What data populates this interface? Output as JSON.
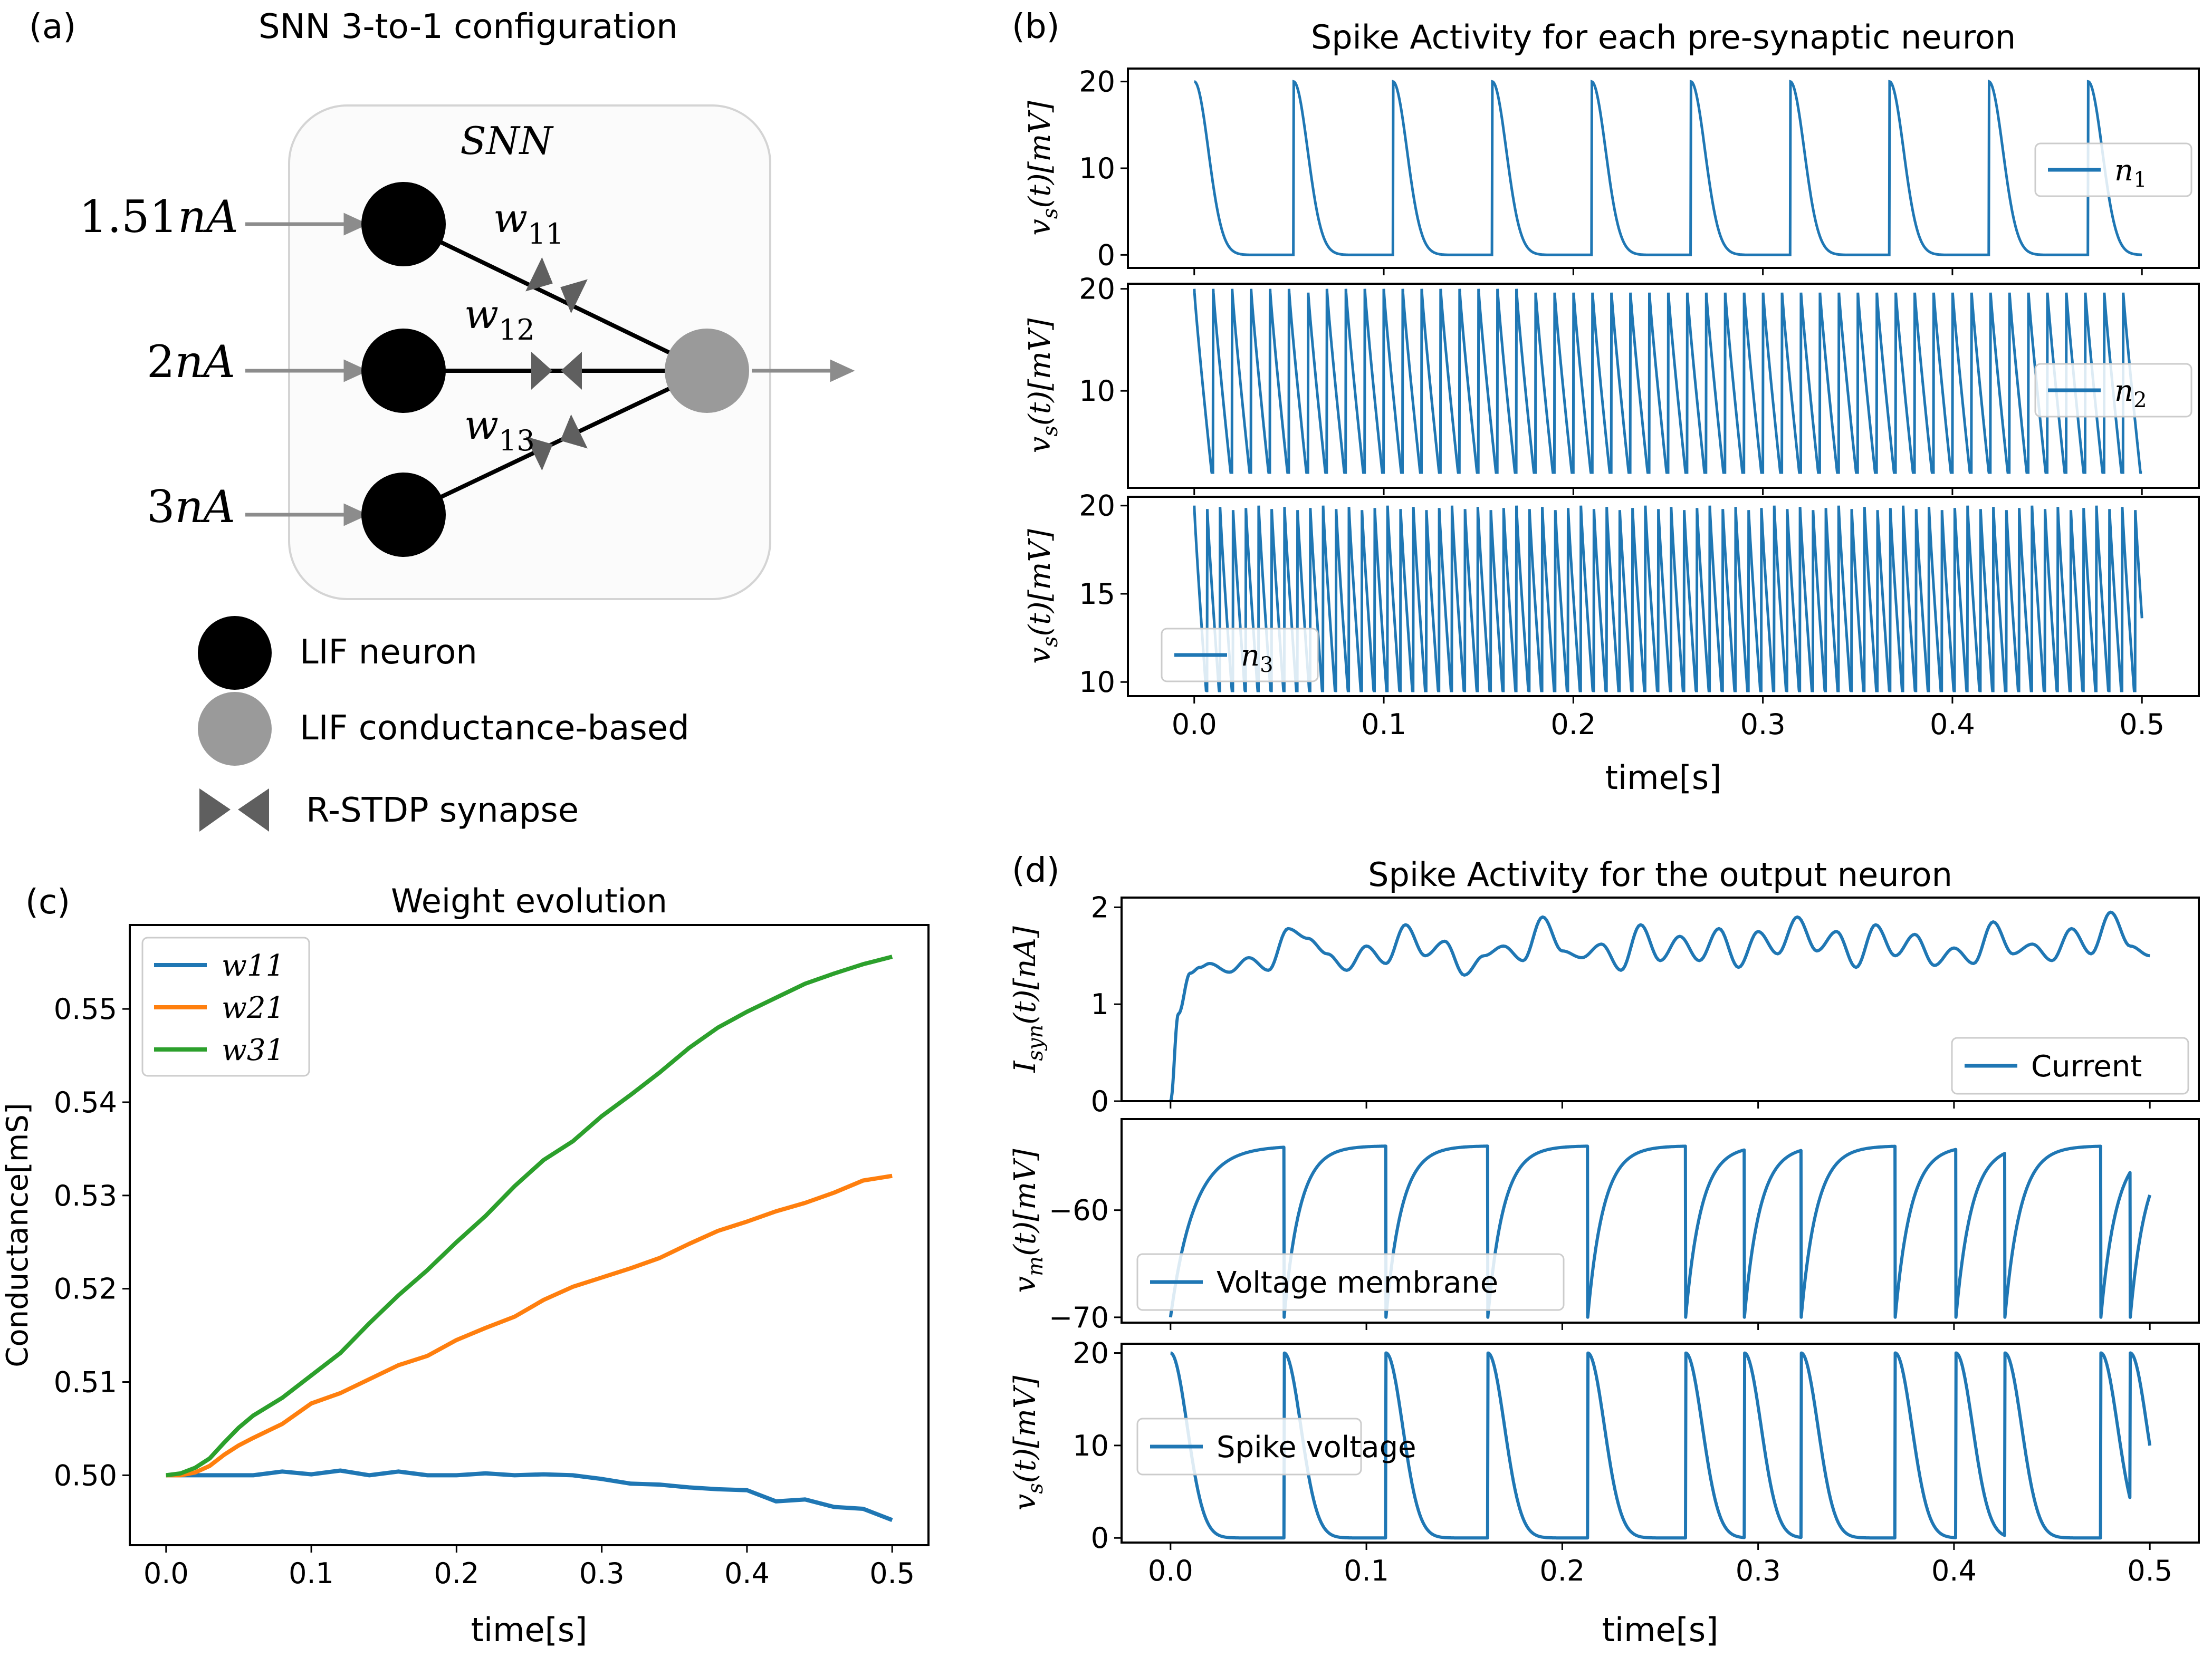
{
  "panels": {
    "a": {
      "label": "(a)",
      "title": "SNN 3-to-1 configuration",
      "box_title": "SNN",
      "inputs": [
        "1.51nA",
        "2nA",
        "3nA"
      ],
      "weights": [
        "w11",
        "w12",
        "w13"
      ],
      "legend": [
        "LIF neuron",
        "LIF conductance-based",
        "R-STDP synapse"
      ]
    },
    "b": {
      "label": "(b)"
    },
    "c": {
      "label": "(c)"
    },
    "d": {
      "label": "(d)"
    }
  },
  "colors": {
    "blue": "#1f77b4",
    "orange": "#ff7f0e",
    "green": "#2ca02c",
    "dark_grey": "#5f5f5f",
    "light_grey": "#9a9a9a"
  },
  "chart_data": [
    {
      "id": "b",
      "type": "line",
      "title": "Spike Activity for each pre-synaptic neuron",
      "xlabel": "time[s]",
      "xlim": [
        -0.035,
        0.53
      ],
      "xticks": [
        "0.0",
        "0.1",
        "0.2",
        "0.3",
        "0.4",
        "0.5"
      ],
      "subplots": [
        {
          "ylabel": "v_s(t)[mV]",
          "legend": "n1",
          "legend_loc": "center right",
          "ylim": [
            -1.5,
            21.5
          ],
          "yticks": [
            "0",
            "10",
            "20"
          ],
          "spike_period_s": 0.0524,
          "v_high": 20,
          "v_low": 0,
          "decay": "fast"
        },
        {
          "ylabel": "v_s(t)[mV]",
          "legend": "n2",
          "legend_loc": "center right",
          "ylim": [
            0.5,
            20.5
          ],
          "yticks": [
            "10",
            "20"
          ],
          "spike_period_s": 0.01,
          "v_high": 20,
          "v_low": 2
        },
        {
          "ylabel": "v_s(t)[mV]",
          "legend": "n3",
          "legend_loc": "lower left",
          "ylim": [
            9.2,
            20.5
          ],
          "yticks": [
            "10",
            "15",
            "20"
          ],
          "spike_period_s": 0.0068,
          "v_high": 20,
          "v_low": 9.5
        }
      ]
    },
    {
      "id": "c",
      "type": "line",
      "title": "Weight evolution",
      "xlabel": "time[s]",
      "ylabel": "Conductance[mS]",
      "xlim": [
        -0.025,
        0.525
      ],
      "ylim": [
        0.4925,
        0.559
      ],
      "xticks": [
        "0.0",
        "0.1",
        "0.2",
        "0.3",
        "0.4",
        "0.5"
      ],
      "yticks": [
        "0.50",
        "0.51",
        "0.52",
        "0.53",
        "0.54",
        "0.55"
      ],
      "legend_loc": "upper left",
      "x": [
        0.0,
        0.01,
        0.02,
        0.03,
        0.04,
        0.05,
        0.06,
        0.08,
        0.1,
        0.12,
        0.14,
        0.16,
        0.18,
        0.2,
        0.22,
        0.24,
        0.26,
        0.28,
        0.3,
        0.32,
        0.34,
        0.36,
        0.38,
        0.4,
        0.42,
        0.44,
        0.46,
        0.48,
        0.5
      ],
      "series": [
        {
          "name": "w11",
          "color": "#1f77b4",
          "values": [
            0.5,
            0.5,
            0.5,
            0.5,
            0.5,
            0.5,
            0.5,
            0.5004,
            0.5001,
            0.5005,
            0.5,
            0.5004,
            0.5,
            0.5,
            0.5002,
            0.5,
            0.5001,
            0.5,
            0.4996,
            0.4991,
            0.499,
            0.4987,
            0.4985,
            0.4984,
            0.4972,
            0.4974,
            0.4966,
            0.4964,
            0.4952
          ]
        },
        {
          "name": "w21",
          "color": "#ff7f0e",
          "values": [
            0.5,
            0.5,
            0.5003,
            0.501,
            0.5022,
            0.5032,
            0.504,
            0.5055,
            0.5077,
            0.5088,
            0.5103,
            0.5118,
            0.5128,
            0.5145,
            0.5158,
            0.517,
            0.5188,
            0.5202,
            0.5212,
            0.5222,
            0.5233,
            0.5248,
            0.5262,
            0.5272,
            0.5283,
            0.5292,
            0.5303,
            0.5316,
            0.5321
          ]
        },
        {
          "name": "w31",
          "color": "#2ca02c",
          "values": [
            0.5,
            0.5002,
            0.5008,
            0.5018,
            0.5035,
            0.5051,
            0.5064,
            0.5083,
            0.5107,
            0.5131,
            0.5163,
            0.5193,
            0.522,
            0.525,
            0.5278,
            0.531,
            0.5338,
            0.5358,
            0.5385,
            0.5408,
            0.5432,
            0.5458,
            0.548,
            0.5497,
            0.5512,
            0.5527,
            0.5538,
            0.5548,
            0.5556
          ]
        }
      ]
    },
    {
      "id": "d",
      "type": "line",
      "title": "Spike Activity for the output neuron",
      "xlabel": "time[s]",
      "xlim": [
        -0.025,
        0.525
      ],
      "xticks": [
        "0.0",
        "0.1",
        "0.2",
        "0.3",
        "0.4",
        "0.5"
      ],
      "spike_times_s": [
        0.058,
        0.11,
        0.162,
        0.213,
        0.263,
        0.293,
        0.322,
        0.37,
        0.401,
        0.426,
        0.475,
        0.49
      ],
      "subplots": [
        {
          "ylabel": "I_syn(t)[nA]",
          "legend": "Current",
          "legend_loc": "lower right",
          "ylim": [
            0,
            2.1
          ],
          "yticks": [
            "0",
            "1",
            "2"
          ],
          "t": [
            0.0,
            0.004,
            0.01,
            0.015,
            0.02,
            0.03,
            0.04,
            0.05,
            0.06,
            0.07,
            0.08,
            0.09,
            0.1,
            0.11,
            0.12,
            0.13,
            0.14,
            0.15,
            0.16,
            0.17,
            0.18,
            0.19,
            0.2,
            0.21,
            0.22,
            0.23,
            0.24,
            0.25,
            0.26,
            0.27,
            0.28,
            0.29,
            0.3,
            0.31,
            0.32,
            0.33,
            0.34,
            0.35,
            0.36,
            0.37,
            0.38,
            0.39,
            0.4,
            0.41,
            0.42,
            0.43,
            0.44,
            0.45,
            0.46,
            0.47,
            0.48,
            0.49,
            0.5
          ],
          "values": [
            0.0,
            0.9,
            1.32,
            1.38,
            1.42,
            1.33,
            1.48,
            1.35,
            1.78,
            1.68,
            1.52,
            1.35,
            1.6,
            1.42,
            1.82,
            1.5,
            1.65,
            1.3,
            1.5,
            1.6,
            1.45,
            1.9,
            1.55,
            1.48,
            1.62,
            1.35,
            1.82,
            1.45,
            1.7,
            1.45,
            1.78,
            1.38,
            1.75,
            1.52,
            1.9,
            1.55,
            1.75,
            1.38,
            1.82,
            1.5,
            1.72,
            1.4,
            1.58,
            1.42,
            1.85,
            1.52,
            1.62,
            1.45,
            1.78,
            1.52,
            1.95,
            1.6,
            1.5
          ]
        },
        {
          "ylabel": "v_m(t)[mV]",
          "legend": "Voltage membrane",
          "legend_loc": "lower left",
          "ylim": [
            -70.5,
            -51.5
          ],
          "yticks": [
            "-60",
            "-70"
          ],
          "v_rest": -70,
          "v_threshold": -54
        },
        {
          "ylabel": "v_s(t)[mV]",
          "legend": "Spike voltage",
          "legend_loc": "center left",
          "ylim": [
            -0.5,
            21
          ],
          "yticks": [
            "0",
            "10",
            "20"
          ],
          "v_high": 20,
          "v_low": 0
        }
      ]
    }
  ]
}
